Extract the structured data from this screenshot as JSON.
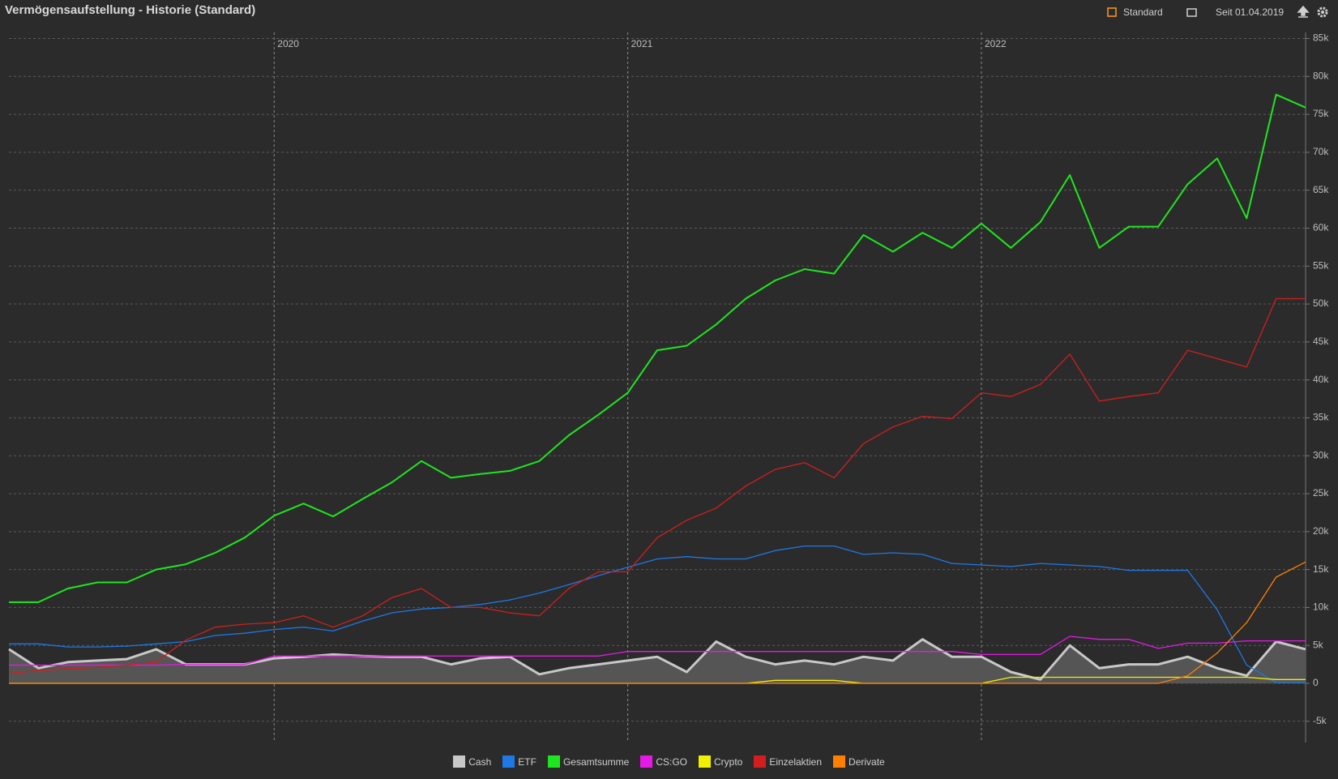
{
  "header": {
    "title": "Vermögensaufstellung - Historie (Standard)",
    "view_button": "Standard",
    "range_button": "Seit 01.04.2019"
  },
  "chart_data": {
    "type": "line",
    "categories": [
      null,
      null,
      null,
      null,
      null,
      null,
      null,
      null,
      null,
      "2020",
      null,
      null,
      null,
      null,
      null,
      null,
      null,
      null,
      null,
      null,
      null,
      "2021",
      null,
      null,
      null,
      null,
      null,
      null,
      null,
      null,
      null,
      null,
      null,
      "2022",
      null,
      null,
      null,
      null,
      null,
      null,
      null,
      null,
      null,
      null,
      null
    ],
    "series": [
      {
        "name": "Cash",
        "color": "#c8c8c8",
        "area": true,
        "values": [
          4500,
          2000,
          2800,
          3000,
          3200,
          4500,
          2500,
          2500,
          2500,
          3300,
          3500,
          3800,
          3600,
          3500,
          3500,
          2500,
          3300,
          3500,
          1200,
          2000,
          2500,
          3000,
          3500,
          1500,
          5500,
          3500,
          2500,
          3000,
          2500,
          3500,
          3000,
          5800,
          3500,
          3500,
          1500,
          500,
          5000,
          2000,
          2500,
          2500,
          3500,
          2000,
          1000,
          5500,
          4500
        ]
      },
      {
        "name": "ETF",
        "color": "#1e78e6",
        "values": [
          5200,
          5200,
          4800,
          4800,
          4900,
          5200,
          5500,
          6300,
          6600,
          7100,
          7400,
          6900,
          8200,
          9300,
          9800,
          10000,
          10400,
          11000,
          11900,
          13000,
          14200,
          15300,
          16400,
          16700,
          16400,
          16400,
          17500,
          18100,
          18100,
          17000,
          17200,
          17000,
          15800,
          15600,
          15400,
          15800,
          15600,
          15400,
          14900,
          14900,
          14900,
          9700,
          2400,
          100,
          100
        ]
      },
      {
        "name": "Gesamtsumme",
        "color": "#1ee61e",
        "values": [
          10700,
          10700,
          12500,
          13300,
          13300,
          15000,
          15700,
          17200,
          19200,
          22100,
          23700,
          22000,
          24300,
          26500,
          29300,
          27100,
          27600,
          28000,
          29300,
          32700,
          35400,
          38300,
          43900,
          44500,
          47300,
          50700,
          53100,
          54600,
          54000,
          59100,
          56900,
          59400,
          57400,
          60600,
          57400,
          60800,
          67000,
          57400,
          60200,
          60200,
          65800,
          69200,
          61300,
          77600,
          75900
        ]
      },
      {
        "name": "CS:GO",
        "color": "#e619e6",
        "values": [
          2400,
          2400,
          2400,
          2400,
          2400,
          2400,
          2500,
          2500,
          2500,
          3600,
          3600,
          3600,
          3600,
          3600,
          3600,
          3600,
          3600,
          3600,
          3600,
          3600,
          3600,
          4200,
          4200,
          4200,
          4200,
          4200,
          4200,
          4200,
          4200,
          4200,
          4200,
          4200,
          4200,
          3800,
          3800,
          3800,
          6200,
          5800,
          5800,
          4600,
          5300,
          5300,
          5600,
          5600,
          5600
        ]
      },
      {
        "name": "Crypto",
        "color": "#f0f000",
        "values": [
          0,
          0,
          0,
          0,
          0,
          0,
          0,
          0,
          0,
          0,
          0,
          0,
          0,
          0,
          0,
          0,
          0,
          0,
          0,
          0,
          0,
          0,
          0,
          0,
          0,
          0,
          400,
          400,
          400,
          0,
          0,
          0,
          0,
          0,
          800,
          800,
          800,
          800,
          800,
          800,
          800,
          800,
          800,
          500,
          500
        ]
      },
      {
        "name": "Einzelaktien",
        "color": "#d21e1e",
        "values": [
          1300,
          1700,
          1900,
          2100,
          2400,
          2800,
          5700,
          7400,
          7800,
          8000,
          8900,
          7400,
          8900,
          11300,
          12500,
          10000,
          10000,
          9300,
          8900,
          12500,
          14700,
          14700,
          19200,
          21500,
          23100,
          26000,
          28200,
          29100,
          27100,
          31600,
          33800,
          35200,
          34900,
          38300,
          37800,
          39400,
          43400,
          37200,
          37800,
          38300,
          43900,
          42800,
          41700,
          50700,
          50700
        ]
      },
      {
        "name": "Derivate",
        "color": "#ff8000",
        "values": [
          0,
          0,
          0,
          0,
          0,
          0,
          0,
          0,
          0,
          0,
          0,
          0,
          0,
          0,
          0,
          0,
          0,
          0,
          0,
          0,
          0,
          0,
          0,
          0,
          0,
          0,
          0,
          0,
          0,
          0,
          0,
          0,
          0,
          0,
          0,
          0,
          0,
          0,
          0,
          0,
          1000,
          4000,
          8000,
          14000,
          16000
        ]
      }
    ],
    "ylim": [
      -7800,
      85800
    ],
    "yticks": [
      {
        "value": -5000,
        "label": "-5k"
      },
      0,
      {
        "value": 5000,
        "label": "5k"
      },
      {
        "value": 10000,
        "label": "10k"
      },
      {
        "value": 15000,
        "label": "15k"
      },
      {
        "value": 20000,
        "label": "20k"
      },
      {
        "value": 25000,
        "label": "25k"
      },
      {
        "value": 30000,
        "label": "30k"
      },
      {
        "value": 35000,
        "label": "35k"
      },
      {
        "value": 40000,
        "label": "40k"
      },
      {
        "value": 45000,
        "label": "45k"
      },
      {
        "value": 50000,
        "label": "50k"
      },
      {
        "value": 55000,
        "label": "55k"
      },
      {
        "value": 60000,
        "label": "60k"
      },
      {
        "value": 65000,
        "label": "65k"
      },
      {
        "value": 70000,
        "label": "70k"
      },
      {
        "value": 75000,
        "label": "75k"
      },
      {
        "value": 80000,
        "label": "80k"
      },
      {
        "value": 85000,
        "label": "85k"
      }
    ],
    "grid": true
  }
}
